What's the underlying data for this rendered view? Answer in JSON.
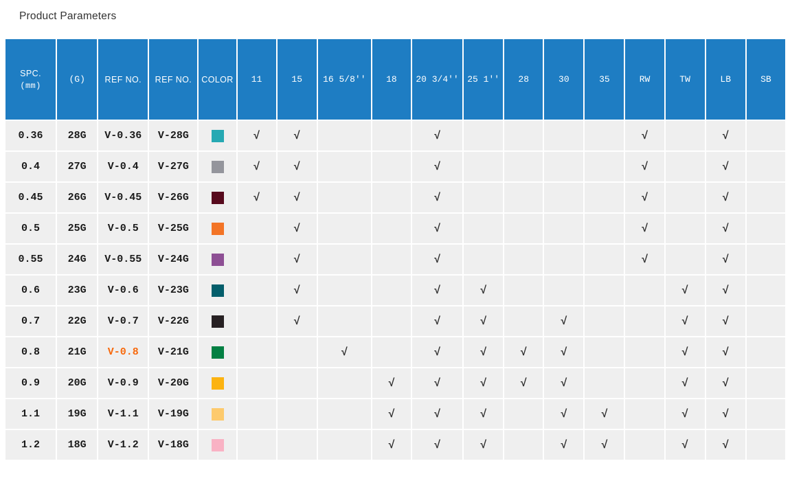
{
  "title": "Product Parameters",
  "colors": {
    "header_bg": "#1e7dc3",
    "header_text": "#ffffff",
    "row_bg": "#efefef",
    "body_text": "#1a1a1a",
    "check_color": "#2e2e2e",
    "highlight_text": "#f7690c"
  },
  "table": {
    "check_mark": "√",
    "columns": [
      {
        "key": "spc",
        "label": "SPC.",
        "sub": "(mm)"
      },
      {
        "key": "g",
        "label": "(G)"
      },
      {
        "key": "ref1",
        "label": "REF NO."
      },
      {
        "key": "ref2",
        "label": "REF NO."
      },
      {
        "key": "color",
        "label": "COLOR"
      },
      {
        "key": "c11",
        "label": "11"
      },
      {
        "key": "c15",
        "label": "15"
      },
      {
        "key": "c16",
        "label": "16 5/8''"
      },
      {
        "key": "c18",
        "label": "18"
      },
      {
        "key": "c20",
        "label": "20 3/4''"
      },
      {
        "key": "c25",
        "label": "25 1''"
      },
      {
        "key": "c28",
        "label": "28"
      },
      {
        "key": "c30",
        "label": "30"
      },
      {
        "key": "c35",
        "label": "35"
      },
      {
        "key": "rw",
        "label": "RW"
      },
      {
        "key": "tw",
        "label": "TW"
      },
      {
        "key": "lb",
        "label": "LB"
      },
      {
        "key": "sb",
        "label": "SB"
      }
    ],
    "rows": [
      {
        "spc": "0.36",
        "g": "28G",
        "ref1": "V-0.36",
        "ref2": "V-28G",
        "highlight": false,
        "swatch": "#26a9b3",
        "checks": [
          "c11",
          "c15",
          "c20",
          "rw",
          "lb"
        ]
      },
      {
        "spc": "0.4",
        "g": "27G",
        "ref1": "V-0.4",
        "ref2": "V-27G",
        "highlight": false,
        "swatch": "#94959c",
        "checks": [
          "c11",
          "c15",
          "c20",
          "rw",
          "lb"
        ]
      },
      {
        "spc": "0.45",
        "g": "26G",
        "ref1": "V-0.45",
        "ref2": "V-26G",
        "highlight": false,
        "swatch": "#570a1d",
        "checks": [
          "c11",
          "c15",
          "c20",
          "rw",
          "lb"
        ]
      },
      {
        "spc": "0.5",
        "g": "25G",
        "ref1": "V-0.5",
        "ref2": "V-25G",
        "highlight": false,
        "swatch": "#f37426",
        "checks": [
          "c15",
          "c20",
          "rw",
          "lb"
        ]
      },
      {
        "spc": "0.55",
        "g": "24G",
        "ref1": "V-0.55",
        "ref2": "V-24G",
        "highlight": false,
        "swatch": "#8d4f94",
        "checks": [
          "c15",
          "c20",
          "rw",
          "lb"
        ]
      },
      {
        "spc": "0.6",
        "g": "23G",
        "ref1": "V-0.6",
        "ref2": "V-23G",
        "highlight": false,
        "swatch": "#045e6b",
        "checks": [
          "c15",
          "c20",
          "c25",
          "tw",
          "lb"
        ]
      },
      {
        "spc": "0.7",
        "g": "22G",
        "ref1": "V-0.7",
        "ref2": "V-22G",
        "highlight": false,
        "swatch": "#272123",
        "checks": [
          "c15",
          "c20",
          "c25",
          "c30",
          "tw",
          "lb"
        ]
      },
      {
        "spc": "0.8",
        "g": "21G",
        "ref1": "V-0.8",
        "ref2": "V-21G",
        "highlight": true,
        "swatch": "#038043",
        "checks": [
          "c16",
          "c20",
          "c25",
          "c28",
          "c30",
          "tw",
          "lb"
        ]
      },
      {
        "spc": "0.9",
        "g": "20G",
        "ref1": "V-0.9",
        "ref2": "V-20G",
        "highlight": false,
        "swatch": "#fcb311",
        "checks": [
          "c18",
          "c20",
          "c25",
          "c28",
          "c30",
          "tw",
          "lb"
        ]
      },
      {
        "spc": "1.1",
        "g": "19G",
        "ref1": "V-1.1",
        "ref2": "V-19G",
        "highlight": false,
        "swatch": "#fdca6d",
        "checks": [
          "c18",
          "c20",
          "c25",
          "c30",
          "c35",
          "tw",
          "lb"
        ]
      },
      {
        "spc": "1.2",
        "g": "18G",
        "ref1": "V-1.2",
        "ref2": "V-18G",
        "highlight": false,
        "swatch": "#f9b2c4",
        "checks": [
          "c18",
          "c20",
          "c25",
          "c30",
          "c35",
          "tw",
          "lb"
        ]
      }
    ]
  }
}
